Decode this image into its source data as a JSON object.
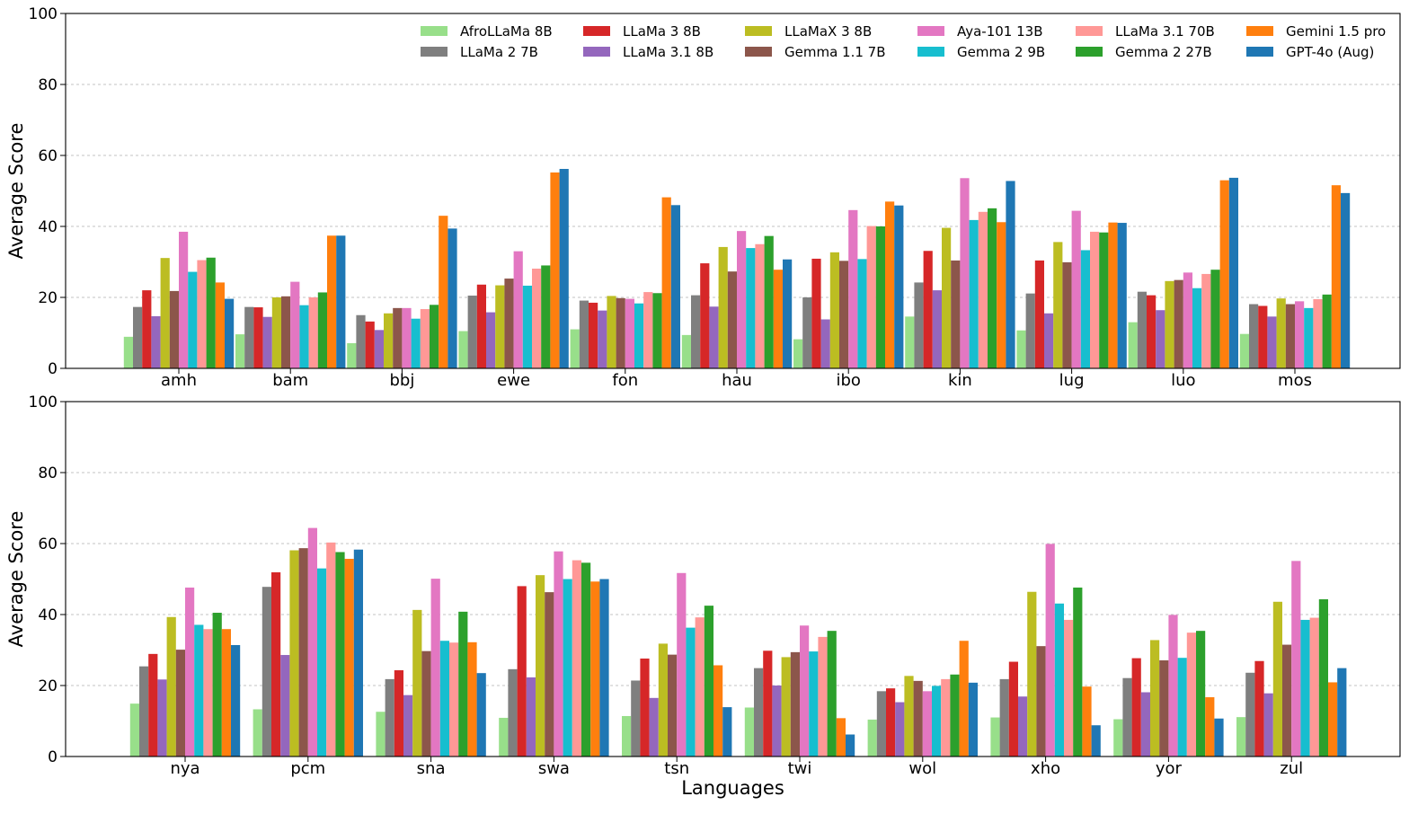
{
  "chart_data": [
    {
      "type": "bar",
      "panel": "top",
      "title": "",
      "xlabel": "",
      "ylabel": "Average Score",
      "ylim": [
        0,
        100
      ],
      "yticks": [
        0,
        20,
        40,
        60,
        80,
        100
      ],
      "grid": "y-dashed",
      "legend": "top-right",
      "categories": [
        "amh",
        "bam",
        "bbj",
        "ewe",
        "fon",
        "hau",
        "ibo",
        "kin",
        "lug",
        "luo",
        "mos"
      ],
      "series": [
        {
          "name": "AfroLLaMa 8B",
          "color": "#98df8a",
          "values": [
            8.9,
            9.6,
            7.1,
            10.5,
            11.0,
            9.4,
            8.2,
            14.6,
            10.7,
            13.0,
            9.7
          ]
        },
        {
          "name": "LLaMa 2 7B",
          "color": "#7f7f7f",
          "values": [
            17.3,
            17.3,
            15.0,
            20.5,
            19.1,
            20.6,
            20.0,
            24.2,
            21.1,
            21.6,
            18.1
          ]
        },
        {
          "name": "LLaMa 3 8B",
          "color": "#d62728",
          "values": [
            22.0,
            17.2,
            13.2,
            23.6,
            18.5,
            29.6,
            30.9,
            33.1,
            30.4,
            20.6,
            17.6
          ]
        },
        {
          "name": "LLaMa 3.1 8B",
          "color": "#9467bd",
          "values": [
            14.7,
            14.5,
            10.8,
            15.8,
            16.3,
            17.4,
            13.8,
            22.0,
            15.5,
            16.4,
            14.6
          ]
        },
        {
          "name": "LLaMaX 3 8B",
          "color": "#bcbd22",
          "values": [
            31.1,
            20.0,
            15.5,
            23.4,
            20.4,
            34.2,
            32.7,
            39.6,
            35.6,
            24.6,
            19.7
          ]
        },
        {
          "name": "Gemma 1.1 7B",
          "color": "#8c564b",
          "values": [
            21.8,
            20.3,
            17.0,
            25.3,
            19.8,
            27.3,
            30.3,
            30.4,
            29.9,
            24.9,
            18.1
          ]
        },
        {
          "name": "Aya-101 13B",
          "color": "#e377c2",
          "values": [
            38.5,
            24.4,
            17.0,
            33.0,
            19.6,
            38.7,
            44.6,
            53.6,
            44.4,
            27.0,
            18.9
          ]
        },
        {
          "name": "Gemma 2 9B",
          "color": "#17becf",
          "values": [
            27.2,
            17.8,
            14.0,
            23.3,
            18.3,
            33.9,
            30.8,
            41.8,
            33.3,
            22.6,
            17.0
          ]
        },
        {
          "name": "LLaMa 3.1 70B",
          "color": "#ff9896",
          "values": [
            30.5,
            20.0,
            16.7,
            28.1,
            21.5,
            35.0,
            40.1,
            44.1,
            38.5,
            26.6,
            19.5
          ]
        },
        {
          "name": "Gemma 2 27B",
          "color": "#2ca02c",
          "values": [
            31.2,
            21.4,
            17.9,
            29.0,
            21.2,
            37.3,
            40.0,
            45.1,
            38.3,
            27.8,
            20.8
          ]
        },
        {
          "name": "Gemini 1.5 pro",
          "color": "#ff7f0e",
          "values": [
            24.2,
            37.4,
            43.0,
            55.2,
            48.2,
            27.8,
            47.0,
            41.2,
            41.1,
            53.0,
            51.6
          ]
        },
        {
          "name": "GPT-4o (Aug)",
          "color": "#1f77b4",
          "values": [
            19.6,
            37.4,
            39.4,
            56.2,
            46.0,
            30.7,
            45.9,
            52.8,
            41.0,
            53.7,
            49.4
          ]
        }
      ]
    },
    {
      "type": "bar",
      "panel": "bottom",
      "title": "",
      "xlabel": "Languages",
      "ylabel": "Average Score",
      "ylim": [
        0,
        100
      ],
      "yticks": [
        0,
        20,
        40,
        60,
        80,
        100
      ],
      "grid": "y-dashed",
      "legend": "",
      "categories": [
        "nya",
        "pcm",
        "sna",
        "swa",
        "tsn",
        "twi",
        "wol",
        "xho",
        "yor",
        "zul"
      ],
      "series": [
        {
          "name": "AfroLLaMa 8B",
          "color": "#98df8a",
          "values": [
            14.9,
            13.3,
            12.6,
            10.9,
            11.4,
            13.8,
            10.4,
            11.0,
            10.5,
            11.1
          ]
        },
        {
          "name": "LLaMa 2 7B",
          "color": "#7f7f7f",
          "values": [
            25.4,
            47.8,
            21.8,
            24.6,
            21.4,
            24.9,
            18.4,
            21.8,
            22.1,
            23.6
          ]
        },
        {
          "name": "LLaMa 3 8B",
          "color": "#d62728",
          "values": [
            28.9,
            51.9,
            24.3,
            48.0,
            27.6,
            29.8,
            19.2,
            26.7,
            27.7,
            26.9
          ]
        },
        {
          "name": "LLaMa 3.1 8B",
          "color": "#9467bd",
          "values": [
            21.7,
            28.6,
            17.3,
            22.3,
            16.5,
            20.0,
            15.3,
            16.9,
            18.1,
            17.8
          ]
        },
        {
          "name": "LLaMaX 3 8B",
          "color": "#bcbd22",
          "values": [
            39.3,
            58.1,
            41.3,
            51.1,
            31.8,
            28.0,
            22.7,
            46.4,
            32.8,
            43.6
          ]
        },
        {
          "name": "Gemma 1.1 7B",
          "color": "#8c564b",
          "values": [
            30.1,
            58.7,
            29.7,
            46.3,
            28.7,
            29.4,
            21.3,
            31.1,
            27.1,
            31.5
          ]
        },
        {
          "name": "Aya-101 13B",
          "color": "#e377c2",
          "values": [
            47.6,
            64.4,
            50.1,
            57.8,
            51.7,
            36.9,
            18.4,
            59.9,
            39.9,
            55.1
          ]
        },
        {
          "name": "Gemma 2 9B",
          "color": "#17becf",
          "values": [
            37.1,
            53.0,
            32.6,
            50.0,
            36.3,
            29.6,
            19.9,
            43.1,
            27.8,
            38.5
          ]
        },
        {
          "name": "LLaMa 3.1 70B",
          "color": "#ff9896",
          "values": [
            35.9,
            60.3,
            32.1,
            55.3,
            39.2,
            33.7,
            21.8,
            38.5,
            34.9,
            39.1
          ]
        },
        {
          "name": "Gemma 2 27B",
          "color": "#2ca02c",
          "values": [
            40.5,
            57.6,
            40.8,
            54.6,
            42.5,
            35.4,
            23.1,
            47.6,
            35.4,
            44.3
          ]
        },
        {
          "name": "Gemini 1.5 pro",
          "color": "#ff7f0e",
          "values": [
            35.9,
            55.7,
            32.2,
            49.3,
            25.7,
            10.8,
            32.6,
            19.7,
            16.7,
            20.9
          ]
        },
        {
          "name": "GPT-4o (Aug)",
          "color": "#1f77b4",
          "values": [
            31.4,
            58.3,
            23.5,
            50.0,
            13.9,
            6.2,
            20.8,
            8.8,
            10.7,
            24.9
          ]
        }
      ]
    }
  ]
}
